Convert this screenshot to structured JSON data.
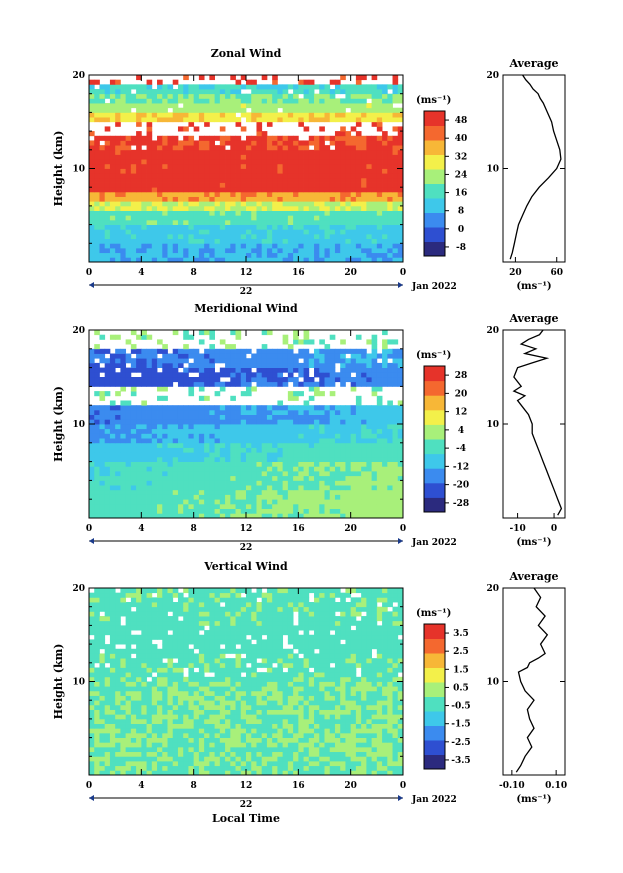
{
  "chart_data": [
    {
      "type": "heatmap",
      "title": "Zonal Wind",
      "ylabel": "Height (km)",
      "y_ticks": [
        "10",
        "20"
      ],
      "x_ticks": [
        "0",
        "4",
        "8",
        "12",
        "16",
        "20",
        "0"
      ],
      "date_center": "22",
      "date_right": "Jan 2022",
      "unit": "(ms⁻¹)",
      "colorbar_ticks": [
        "-8",
        "0",
        "8",
        "16",
        "24",
        "32",
        "40",
        "48"
      ],
      "colorbar_range": [
        -12,
        52
      ],
      "profile": {
        "title": "Average",
        "x_ticks": [
          "20",
          "60"
        ],
        "xlim": [
          8,
          68
        ],
        "unit": "(ms⁻¹)",
        "y_ticks": [
          "10",
          "20"
        ],
        "points": [
          [
            15,
            0.3
          ],
          [
            17,
            1
          ],
          [
            19,
            2
          ],
          [
            21,
            3
          ],
          [
            23,
            4
          ],
          [
            27,
            5
          ],
          [
            31,
            6
          ],
          [
            36,
            7
          ],
          [
            43,
            8
          ],
          [
            52,
            9
          ],
          [
            60,
            10
          ],
          [
            64,
            11
          ],
          [
            63,
            12
          ],
          [
            60,
            13
          ],
          [
            57,
            14
          ],
          [
            55,
            15
          ],
          [
            51,
            16
          ],
          [
            47,
            17
          ],
          [
            44,
            17.5
          ],
          [
            42,
            18
          ],
          [
            37,
            18.5
          ],
          [
            34,
            19
          ],
          [
            30,
            19.5
          ],
          [
            27,
            20
          ]
        ]
      },
      "bands": [
        [
          0,
          2,
          8
        ],
        [
          2,
          4,
          12
        ],
        [
          4,
          5.5,
          18
        ],
        [
          5.5,
          6.5,
          26
        ],
        [
          6.5,
          7.5,
          38
        ],
        [
          7.5,
          12,
          48
        ],
        [
          12,
          13.3,
          46
        ],
        [
          13.3,
          15,
          -99
        ],
        [
          15,
          16,
          32
        ],
        [
          16,
          17,
          24
        ],
        [
          17,
          18,
          20
        ],
        [
          18,
          19,
          14
        ],
        [
          19,
          20,
          -99
        ]
      ]
    },
    {
      "type": "heatmap",
      "title": "Meridional Wind",
      "ylabel": "Height (km)",
      "y_ticks": [
        "10",
        "20"
      ],
      "x_ticks": [
        "0",
        "4",
        "8",
        "12",
        "16",
        "20",
        "0"
      ],
      "date_center": "22",
      "date_right": "Jan 2022",
      "unit": "(ms⁻¹)",
      "colorbar_ticks": [
        "-28",
        "-20",
        "-12",
        "-4",
        "4",
        "12",
        "20",
        "28"
      ],
      "colorbar_range": [
        -32,
        32
      ],
      "profile": {
        "title": "Average",
        "x_ticks": [
          "-10",
          "0"
        ],
        "xlim": [
          -14,
          3
        ],
        "unit": "(ms⁻¹)",
        "y_ticks": [
          "10",
          "20"
        ],
        "points": [
          [
            1,
            0.3
          ],
          [
            2,
            1
          ],
          [
            1,
            2
          ],
          [
            0,
            3
          ],
          [
            -1,
            4
          ],
          [
            -2,
            5
          ],
          [
            -3,
            6
          ],
          [
            -4,
            7
          ],
          [
            -5,
            8
          ],
          [
            -6,
            9
          ],
          [
            -6,
            10
          ],
          [
            -7,
            11
          ],
          [
            -9,
            12
          ],
          [
            -10,
            12.5
          ],
          [
            -8,
            13
          ],
          [
            -11,
            13.5
          ],
          [
            -9,
            14
          ],
          [
            -11,
            15
          ],
          [
            -10,
            16
          ],
          [
            -6,
            16.5
          ],
          [
            -2,
            17
          ],
          [
            -8,
            17.5
          ],
          [
            -5,
            18
          ],
          [
            -9,
            18.5
          ],
          [
            -7,
            19
          ],
          [
            -4,
            19.5
          ],
          [
            -3,
            20
          ]
        ]
      },
      "bands": [
        [
          0,
          3,
          0
        ],
        [
          3,
          6,
          -2
        ],
        [
          6,
          8,
          -6
        ],
        [
          8,
          10,
          -10
        ],
        [
          10,
          12,
          -14
        ],
        [
          12,
          14,
          -99
        ],
        [
          14,
          16,
          -20
        ],
        [
          16,
          18,
          -16
        ],
        [
          18,
          20,
          -99
        ]
      ]
    },
    {
      "type": "heatmap",
      "title": "Vertical Wind",
      "ylabel": "Height (km)",
      "xlabel": "Local Time",
      "y_ticks": [
        "10",
        "20"
      ],
      "x_ticks": [
        "0",
        "4",
        "8",
        "12",
        "16",
        "20",
        "0"
      ],
      "date_center": "22",
      "date_right": "Jan 2022",
      "unit": "(ms⁻¹)",
      "colorbar_ticks": [
        "-3.5",
        "-2.5",
        "-1.5",
        "-0.5",
        "0.5",
        "1.5",
        "2.5",
        "3.5"
      ],
      "colorbar_range": [
        -4,
        4
      ],
      "profile": {
        "title": "Average",
        "x_ticks": [
          "-0.10",
          "0.10"
        ],
        "xlim": [
          -0.14,
          0.14
        ],
        "unit": "(ms⁻¹)",
        "y_ticks": [
          "10",
          "20"
        ],
        "points": [
          [
            -0.08,
            0.3
          ],
          [
            -0.06,
            1
          ],
          [
            -0.04,
            2
          ],
          [
            -0.01,
            3
          ],
          [
            -0.03,
            4
          ],
          [
            0.0,
            5
          ],
          [
            -0.02,
            6
          ],
          [
            -0.03,
            7
          ],
          [
            0.0,
            8
          ],
          [
            -0.04,
            9
          ],
          [
            -0.06,
            10
          ],
          [
            -0.07,
            11
          ],
          [
            -0.03,
            11.5
          ],
          [
            -0.02,
            12
          ],
          [
            0.02,
            12.5
          ],
          [
            0.05,
            13
          ],
          [
            0.03,
            14
          ],
          [
            0.06,
            15
          ],
          [
            0.02,
            16
          ],
          [
            0.05,
            17
          ],
          [
            0.01,
            18
          ],
          [
            0.03,
            19
          ],
          [
            0.0,
            20
          ]
        ]
      },
      "bands": [
        [
          0,
          10,
          0.0
        ],
        [
          10,
          13,
          -0.2
        ],
        [
          13,
          16,
          -0.4
        ],
        [
          16,
          20,
          -0.2
        ]
      ]
    }
  ]
}
